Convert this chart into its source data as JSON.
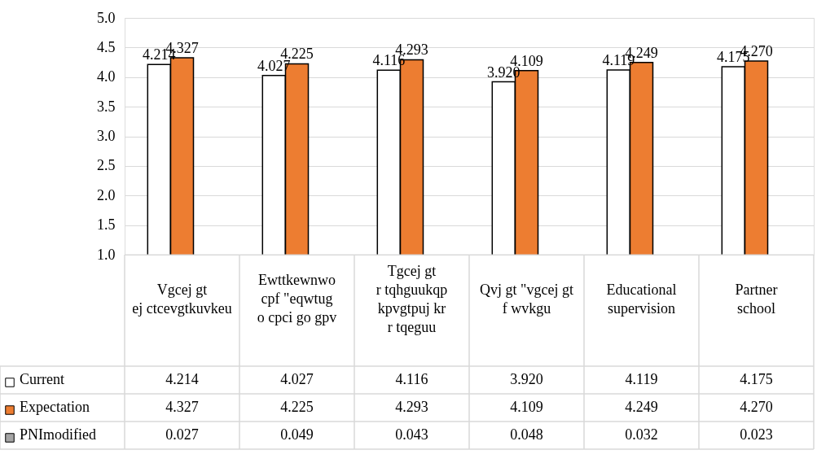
{
  "chart_data": {
    "type": "bar",
    "categories": [
      "Vgcej gt\nej ctcevgtkuvkeu",
      "Ewttkewnwo\ncpf \"eqwtug\no cpci go gpv",
      "Tgcej gt\nr tqhguukqp\nkpvgtpuj kr\nr tqeguu",
      "Qvj gt \"vgcej gt\nf wvkgu",
      "Educational\nsupervision",
      "Partner\nschool"
    ],
    "series": [
      {
        "name": "Current",
        "color": "#ffffff",
        "values": [
          4.214,
          4.027,
          4.116,
          3.92,
          4.119,
          4.175
        ],
        "value_labels": [
          "4.214",
          "4.027",
          "4.116",
          "3.920",
          "4.119",
          "4.175"
        ]
      },
      {
        "name": "Expectation",
        "color": "#ed7d31",
        "values": [
          4.327,
          4.225,
          4.293,
          4.109,
          4.249,
          4.27
        ],
        "value_labels": [
          "4.327",
          "4.225",
          "4.293",
          "4.109",
          "4.249",
          "4.270"
        ]
      },
      {
        "name": "PNImodified",
        "color": "#a5a5a5",
        "values": [
          null,
          null,
          null,
          null,
          null,
          null
        ],
        "value_labels": [
          "0.027",
          "0.049",
          "0.043",
          "0.048",
          "0.032",
          "0.023"
        ]
      }
    ],
    "ylim": [
      1.0,
      5.0
    ],
    "yticks": [
      {
        "value": 1,
        "label": "1.0"
      },
      {
        "value": 1.5,
        "label": "1.5"
      },
      {
        "value": 2,
        "label": "2.0"
      },
      {
        "value": 2.5,
        "label": "2.5"
      },
      {
        "value": 3,
        "label": "3.0"
      },
      {
        "value": 3.5,
        "label": "3.5"
      },
      {
        "value": 4,
        "label": "4.0"
      },
      {
        "value": 4.5,
        "label": "4.5"
      },
      {
        "value": 5,
        "label": "5.0"
      }
    ],
    "grid": "y",
    "legend": "bottom left"
  }
}
